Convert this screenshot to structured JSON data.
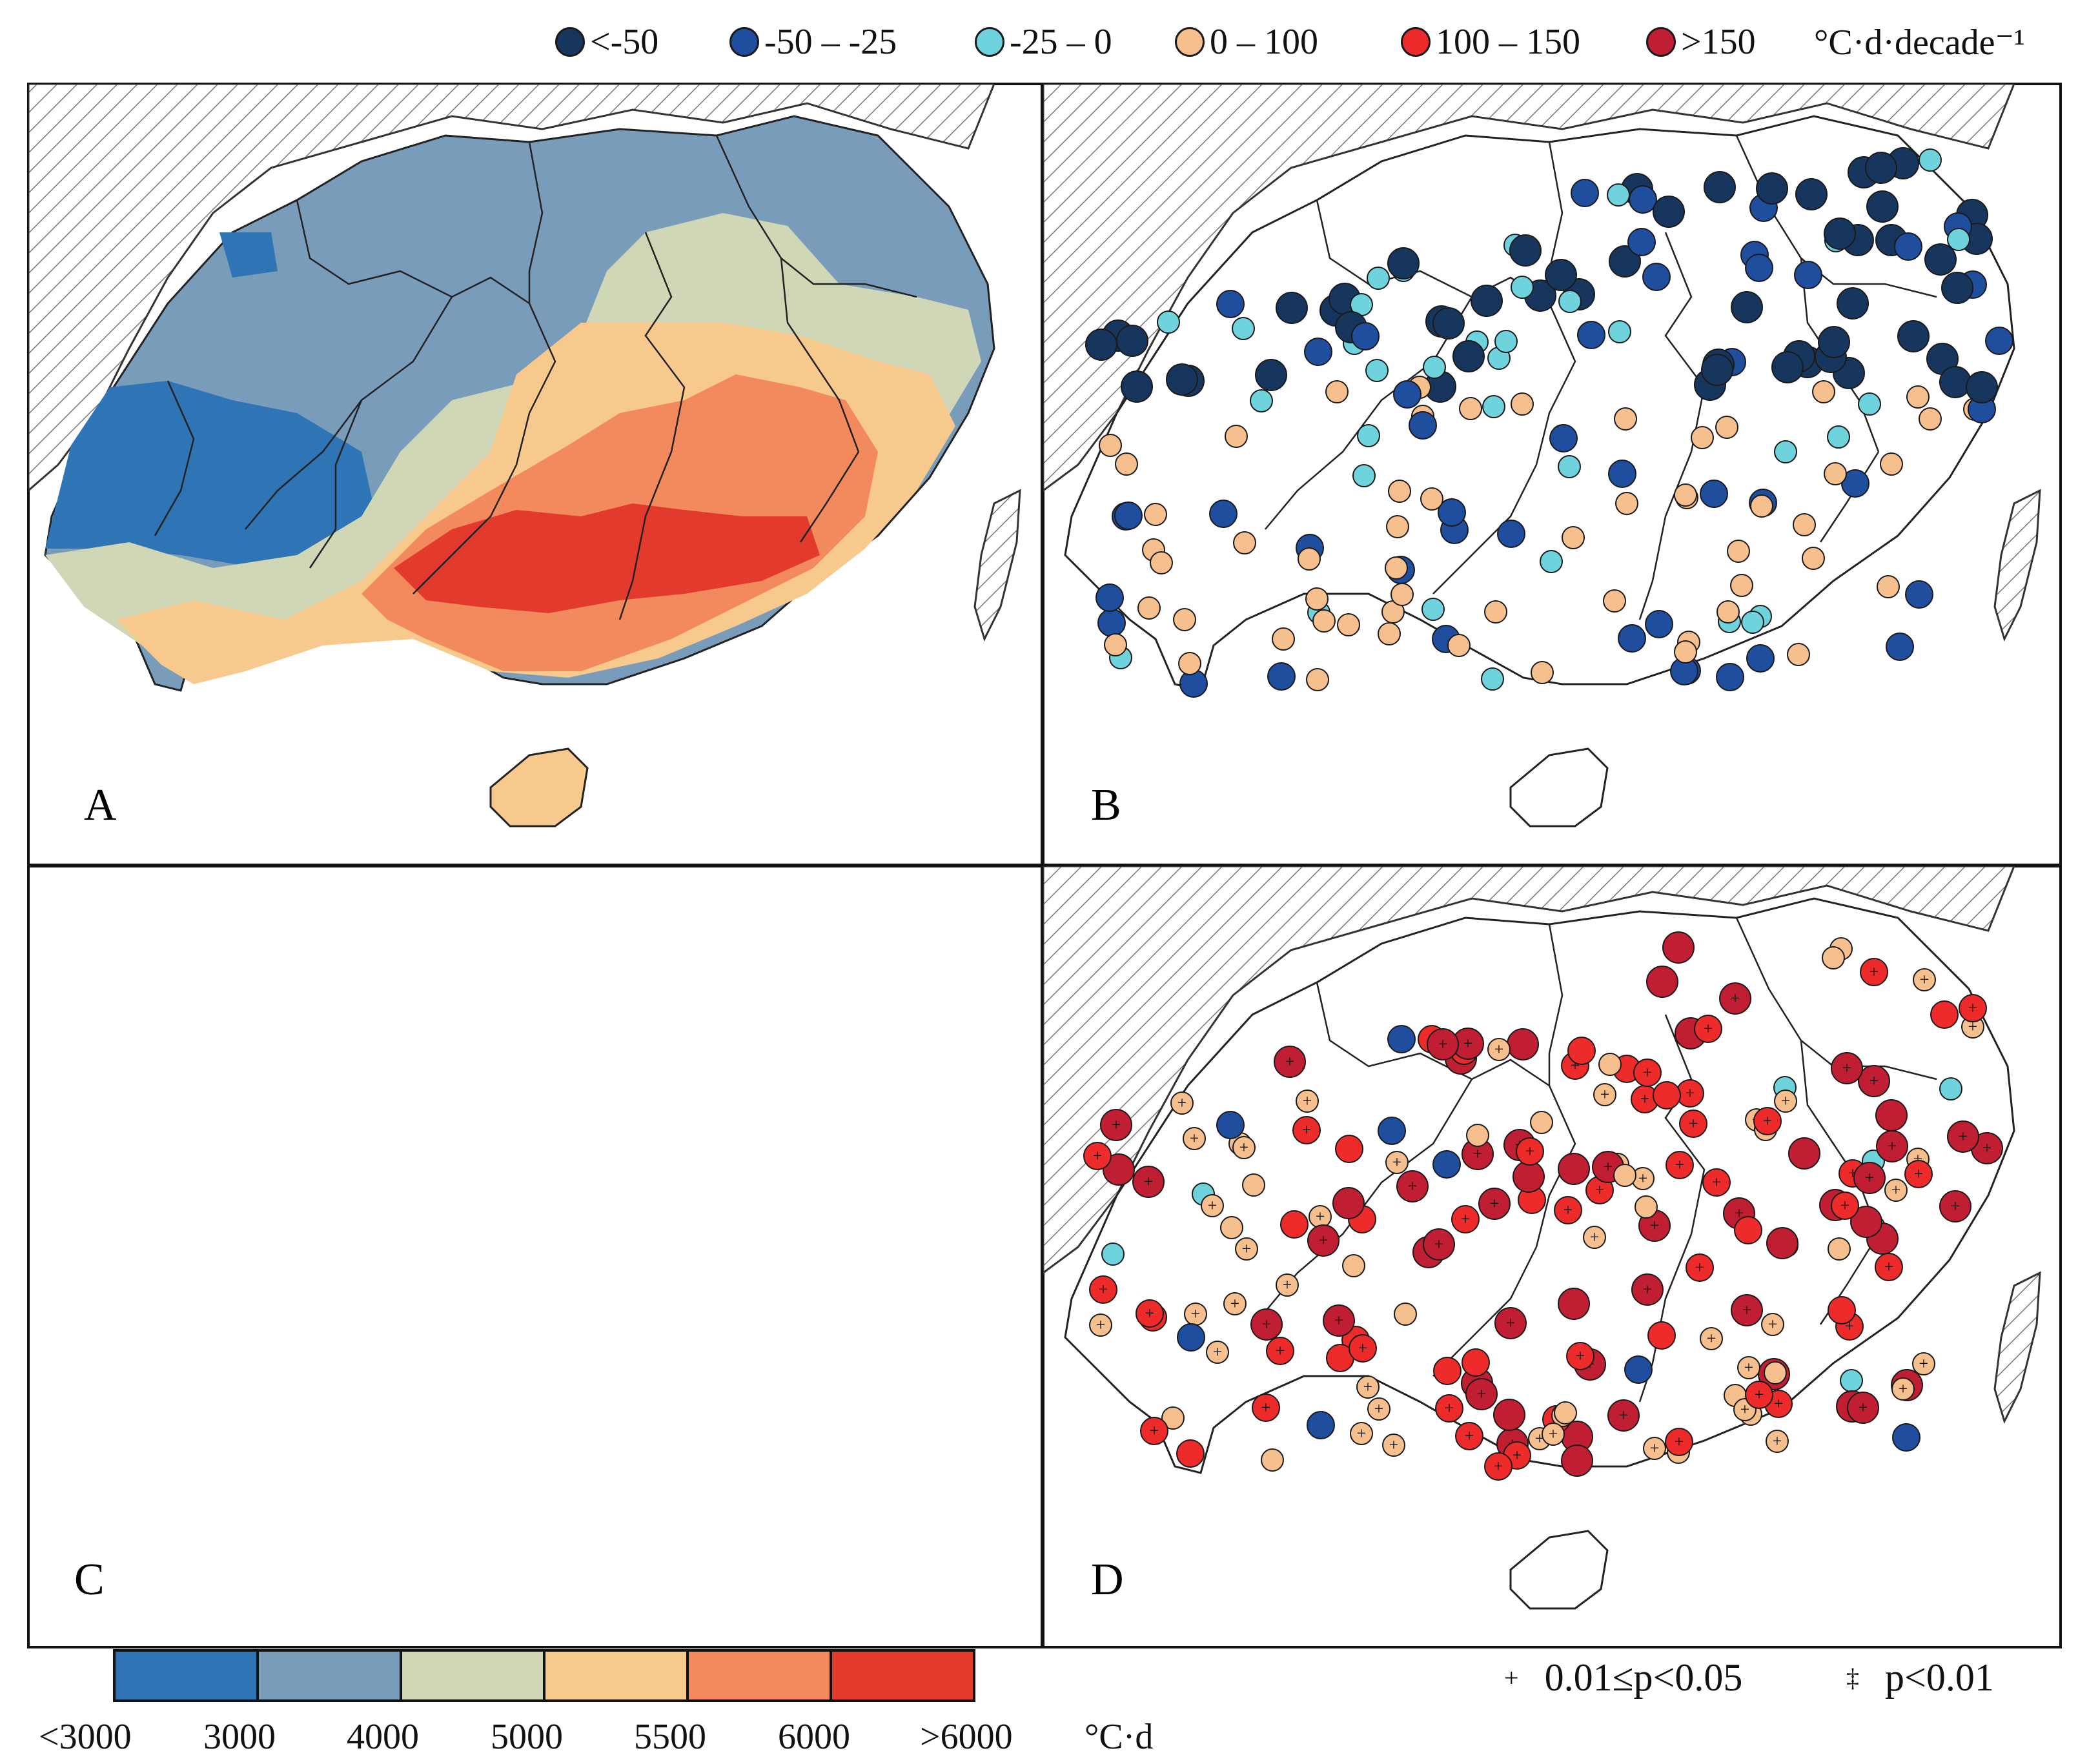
{
  "legend_top": {
    "items": [
      {
        "label": "<-50",
        "color": "#17365d"
      },
      {
        "label": "-50 – -25",
        "color": "#1f4e9f"
      },
      {
        "label": "-25 – 0",
        "color": "#6fd3de"
      },
      {
        "label": "0 – 100",
        "color": "#f6c08e"
      },
      {
        "label": "100 – 150",
        "color": "#ee2b2b"
      },
      {
        "label": ">150",
        "color": "#c01e32"
      }
    ],
    "unit": "°C·d·decade⁻¹"
  },
  "panels": [
    {
      "id": "A",
      "label": "A",
      "type": "accumulated-temperature"
    },
    {
      "id": "B",
      "label": "B",
      "type": "trend-stations"
    },
    {
      "id": "C",
      "label": "C",
      "type": "accumulated-temperature"
    },
    {
      "id": "D",
      "label": "D",
      "type": "trend-stations"
    }
  ],
  "colorbar": {
    "colors": [
      "#2f74b5",
      "#7a9cbb",
      "#cfd7b7",
      "#f8c98d",
      "#f38a5d",
      "#e23a2c"
    ],
    "ticks": [
      "<3000",
      "3000",
      "4000",
      "5000",
      "5500",
      "6000",
      ">6000"
    ],
    "unit": "°C·d"
  },
  "significance_legend": [
    {
      "symbol": "+",
      "label": "0.01≤p<0.05"
    },
    {
      "symbol": "‡",
      "label": "p<0.01"
    }
  ]
}
